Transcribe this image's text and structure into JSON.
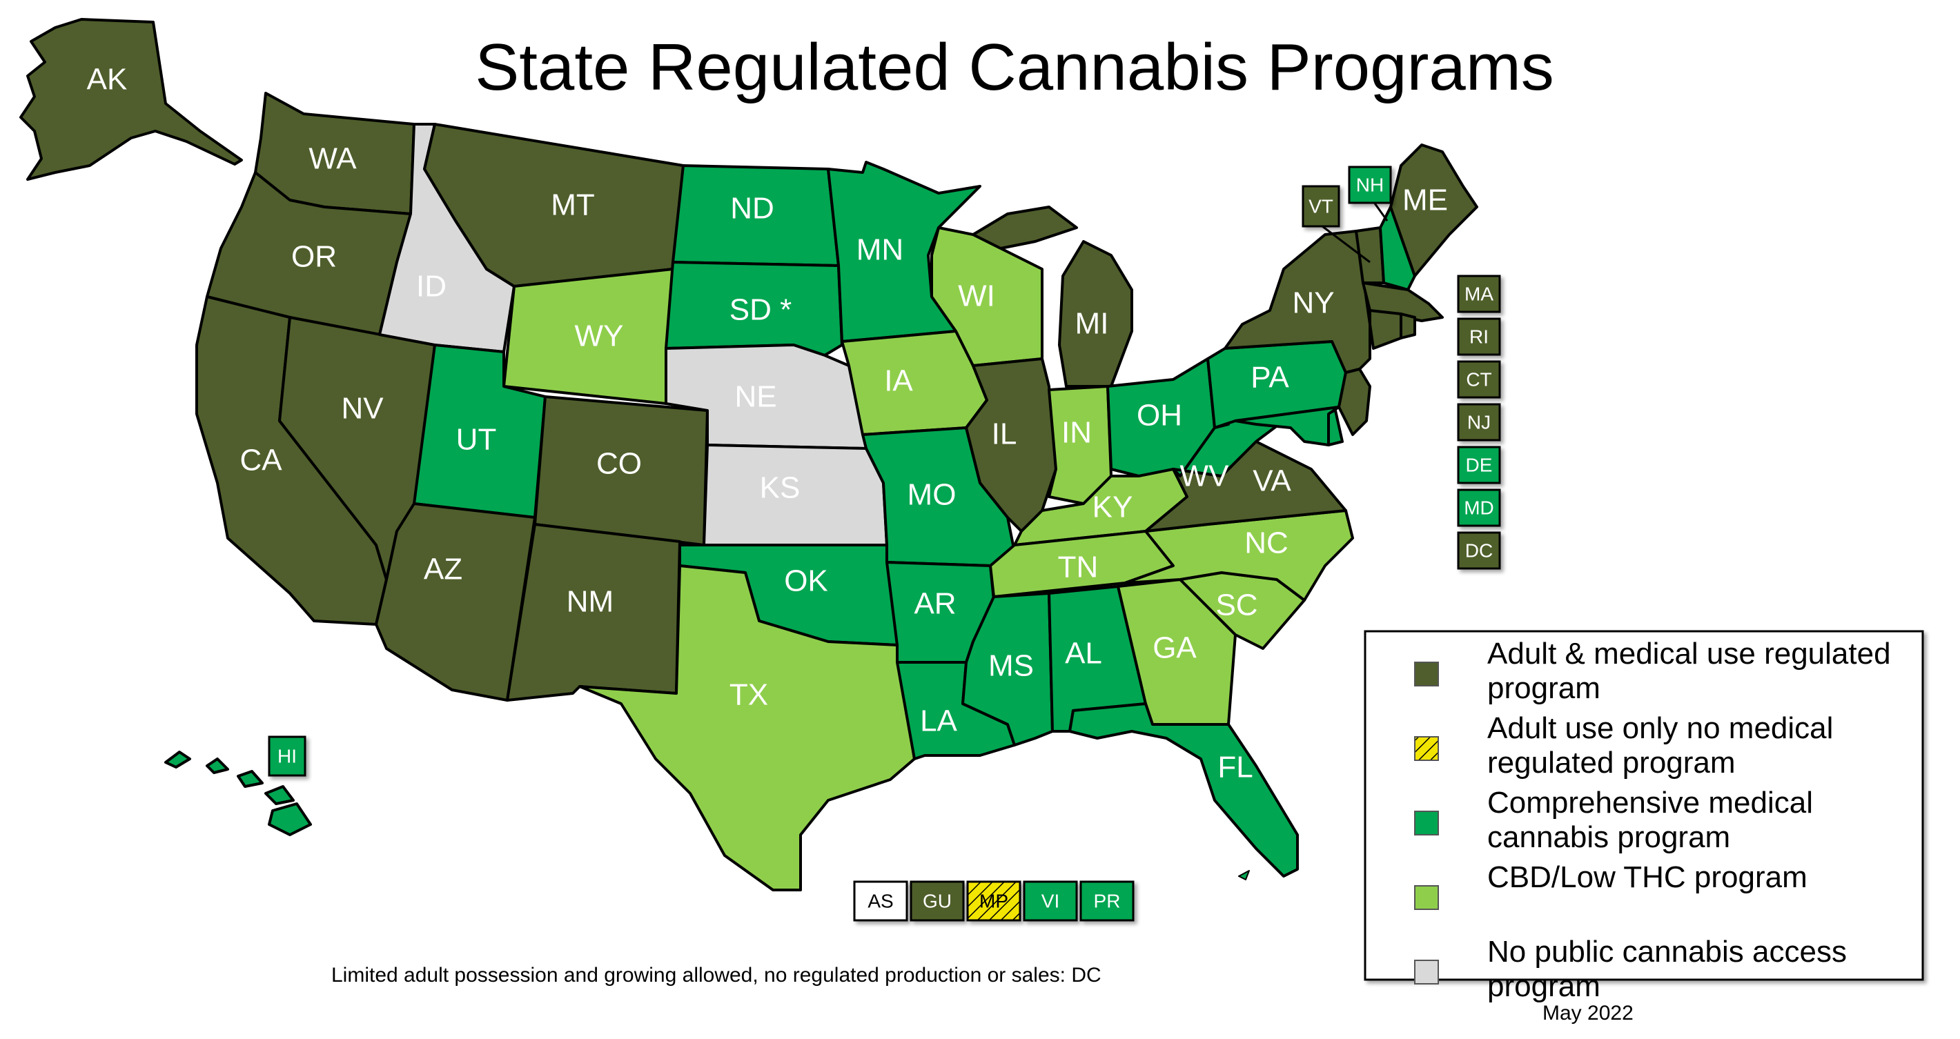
{
  "title": "State Regulated Cannabis Programs",
  "colors": {
    "adult_medical": "#4f5e2c",
    "adult_only": "#f2e600",
    "medical": "#00a651",
    "cbd": "#8fce4b",
    "none": "#d9d9d9",
    "border": "#000000"
  },
  "legend": {
    "items": [
      {
        "category": "adult_medical",
        "line1": "Adult & medical use regulated",
        "line2": "program"
      },
      {
        "category": "adult_only",
        "line1": "Adult use only no medical",
        "line2": "regulated program"
      },
      {
        "category": "medical",
        "line1": "Comprehensive medical",
        "line2": "cannabis program"
      },
      {
        "category": "cbd",
        "line1": "CBD/Low THC program",
        "line2": ""
      },
      {
        "category": "none",
        "line1": "No public cannabis access",
        "line2": "program"
      }
    ]
  },
  "states": {
    "AK": {
      "label": "AK",
      "category": "adult_medical"
    },
    "WA": {
      "label": "WA",
      "category": "adult_medical"
    },
    "OR": {
      "label": "OR",
      "category": "adult_medical"
    },
    "CA": {
      "label": "CA",
      "category": "adult_medical"
    },
    "NV": {
      "label": "NV",
      "category": "adult_medical"
    },
    "ID": {
      "label": "ID",
      "category": "none"
    },
    "MT": {
      "label": "MT",
      "category": "adult_medical"
    },
    "WY": {
      "label": "WY",
      "category": "cbd"
    },
    "UT": {
      "label": "UT",
      "category": "medical"
    },
    "AZ": {
      "label": "AZ",
      "category": "adult_medical"
    },
    "CO": {
      "label": "CO",
      "category": "adult_medical"
    },
    "NM": {
      "label": "NM",
      "category": "adult_medical"
    },
    "ND": {
      "label": "ND",
      "category": "medical"
    },
    "SD": {
      "label": "SD *",
      "category": "medical"
    },
    "NE": {
      "label": "NE",
      "category": "none"
    },
    "KS": {
      "label": "KS",
      "category": "none"
    },
    "OK": {
      "label": "OK",
      "category": "medical"
    },
    "TX": {
      "label": "TX",
      "category": "cbd"
    },
    "MN": {
      "label": "MN",
      "category": "medical"
    },
    "IA": {
      "label": "IA",
      "category": "cbd"
    },
    "MO": {
      "label": "MO",
      "category": "medical"
    },
    "AR": {
      "label": "AR",
      "category": "medical"
    },
    "LA": {
      "label": "LA",
      "category": "medical"
    },
    "WI": {
      "label": "WI",
      "category": "cbd"
    },
    "IL": {
      "label": "IL",
      "category": "adult_medical"
    },
    "MI": {
      "label": "MI",
      "category": "adult_medical"
    },
    "IN": {
      "label": "IN",
      "category": "cbd"
    },
    "OH": {
      "label": "OH",
      "category": "medical"
    },
    "KY": {
      "label": "KY",
      "category": "cbd"
    },
    "TN": {
      "label": "TN",
      "category": "cbd"
    },
    "MS": {
      "label": "MS",
      "category": "medical"
    },
    "AL": {
      "label": "AL",
      "category": "medical"
    },
    "GA": {
      "label": "GA",
      "category": "cbd"
    },
    "FL": {
      "label": "FL",
      "category": "medical"
    },
    "SC": {
      "label": "SC",
      "category": "cbd"
    },
    "NC": {
      "label": "NC",
      "category": "cbd"
    },
    "VA": {
      "label": "VA",
      "category": "adult_medical"
    },
    "WV": {
      "label": "WV",
      "category": "medical"
    },
    "PA": {
      "label": "PA",
      "category": "medical"
    },
    "NY": {
      "label": "NY",
      "category": "adult_medical"
    },
    "VT": {
      "label": "VT",
      "category": "adult_medical"
    },
    "NH": {
      "label": "NH",
      "category": "medical"
    },
    "ME": {
      "label": "ME",
      "category": "adult_medical"
    },
    "NJ": {
      "label": "NJ",
      "category": "adult_medical"
    },
    "DE": {
      "label": "DE",
      "category": "medical"
    },
    "MD": {
      "label": "MD",
      "category": "medical"
    },
    "MA": {
      "label": "MA",
      "category": "adult_medical"
    },
    "CT": {
      "label": "CT",
      "category": "adult_medical"
    },
    "RI": {
      "label": "RI",
      "category": "adult_medical"
    },
    "HI": {
      "label": "HI",
      "category": "medical"
    }
  },
  "small_state_boxes": [
    {
      "label": "MA",
      "category": "adult_medical"
    },
    {
      "label": "RI",
      "category": "adult_medical"
    },
    {
      "label": "CT",
      "category": "adult_medical"
    },
    {
      "label": "NJ",
      "category": "adult_medical"
    },
    {
      "label": "DE",
      "category": "medical"
    },
    {
      "label": "MD",
      "category": "medical"
    },
    {
      "label": "DC",
      "category": "adult_medical"
    }
  ],
  "territories": [
    {
      "label": "AS",
      "category": "white"
    },
    {
      "label": "GU",
      "category": "adult_medical"
    },
    {
      "label": "MP",
      "category": "adult_only"
    },
    {
      "label": "VI",
      "category": "medical"
    },
    {
      "label": "PR",
      "category": "medical"
    }
  ],
  "footnote": "Limited adult possession and growing allowed, no regulated production or sales: DC",
  "date": "May 2022"
}
